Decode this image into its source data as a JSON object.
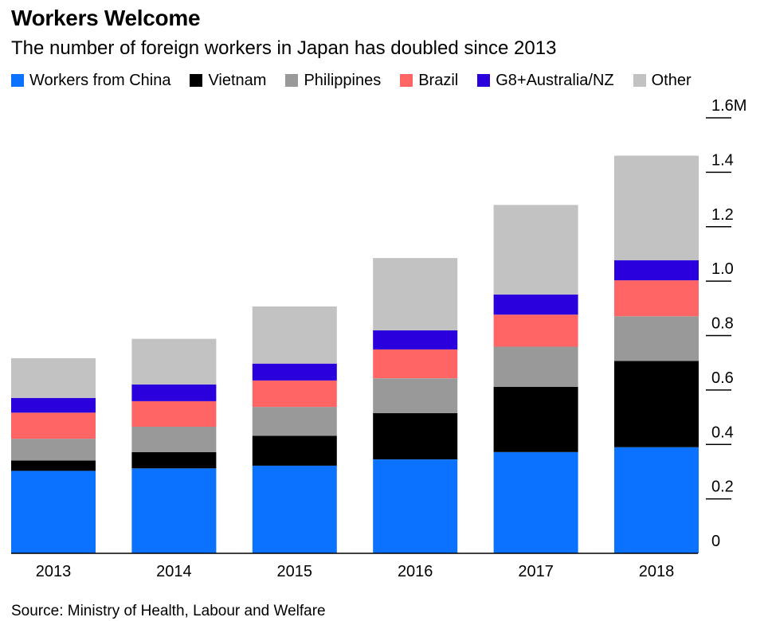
{
  "chart_data": {
    "type": "bar",
    "stacked": true,
    "title": "Workers Welcome",
    "subtitle": "The number of foreign workers in Japan has doubled since 2013",
    "source": "Source: Ministry of Health, Labour and Welfare",
    "categories": [
      "2013",
      "2014",
      "2015",
      "2016",
      "2017",
      "2018"
    ],
    "series": [
      {
        "name": "Workers from China",
        "color": "#0a72ff",
        "values": [
          0.303,
          0.312,
          0.322,
          0.345,
          0.372,
          0.39
        ]
      },
      {
        "name": "Vietnam",
        "color": "#000000",
        "values": [
          0.038,
          0.06,
          0.11,
          0.17,
          0.24,
          0.317
        ]
      },
      {
        "name": "Philippines",
        "color": "#999999",
        "values": [
          0.08,
          0.093,
          0.106,
          0.128,
          0.147,
          0.164
        ]
      },
      {
        "name": "Brazil",
        "color": "#ff6565",
        "values": [
          0.096,
          0.094,
          0.097,
          0.106,
          0.118,
          0.132
        ]
      },
      {
        "name": "G8+Australia/NZ",
        "color": "#2a00dd",
        "values": [
          0.054,
          0.061,
          0.062,
          0.07,
          0.074,
          0.074
        ]
      },
      {
        "name": "Other",
        "color": "#c2c2c2",
        "values": [
          0.146,
          0.168,
          0.21,
          0.266,
          0.329,
          0.384
        ]
      }
    ],
    "ylim": [
      0,
      1.6
    ],
    "y_ticks": [
      {
        "value": 0,
        "label": "0"
      },
      {
        "value": 0.2,
        "label": "0.2"
      },
      {
        "value": 0.4,
        "label": "0.4"
      },
      {
        "value": 0.6,
        "label": "0.6"
      },
      {
        "value": 0.8,
        "label": "0.8"
      },
      {
        "value": 1.0,
        "label": "1.0"
      },
      {
        "value": 1.2,
        "label": "1.2"
      },
      {
        "value": 1.4,
        "label": "1.4"
      },
      {
        "value": 1.6,
        "label": "1.6M"
      }
    ],
    "y_axis_position": "right",
    "legend_position": "top-left",
    "grid": false
  }
}
